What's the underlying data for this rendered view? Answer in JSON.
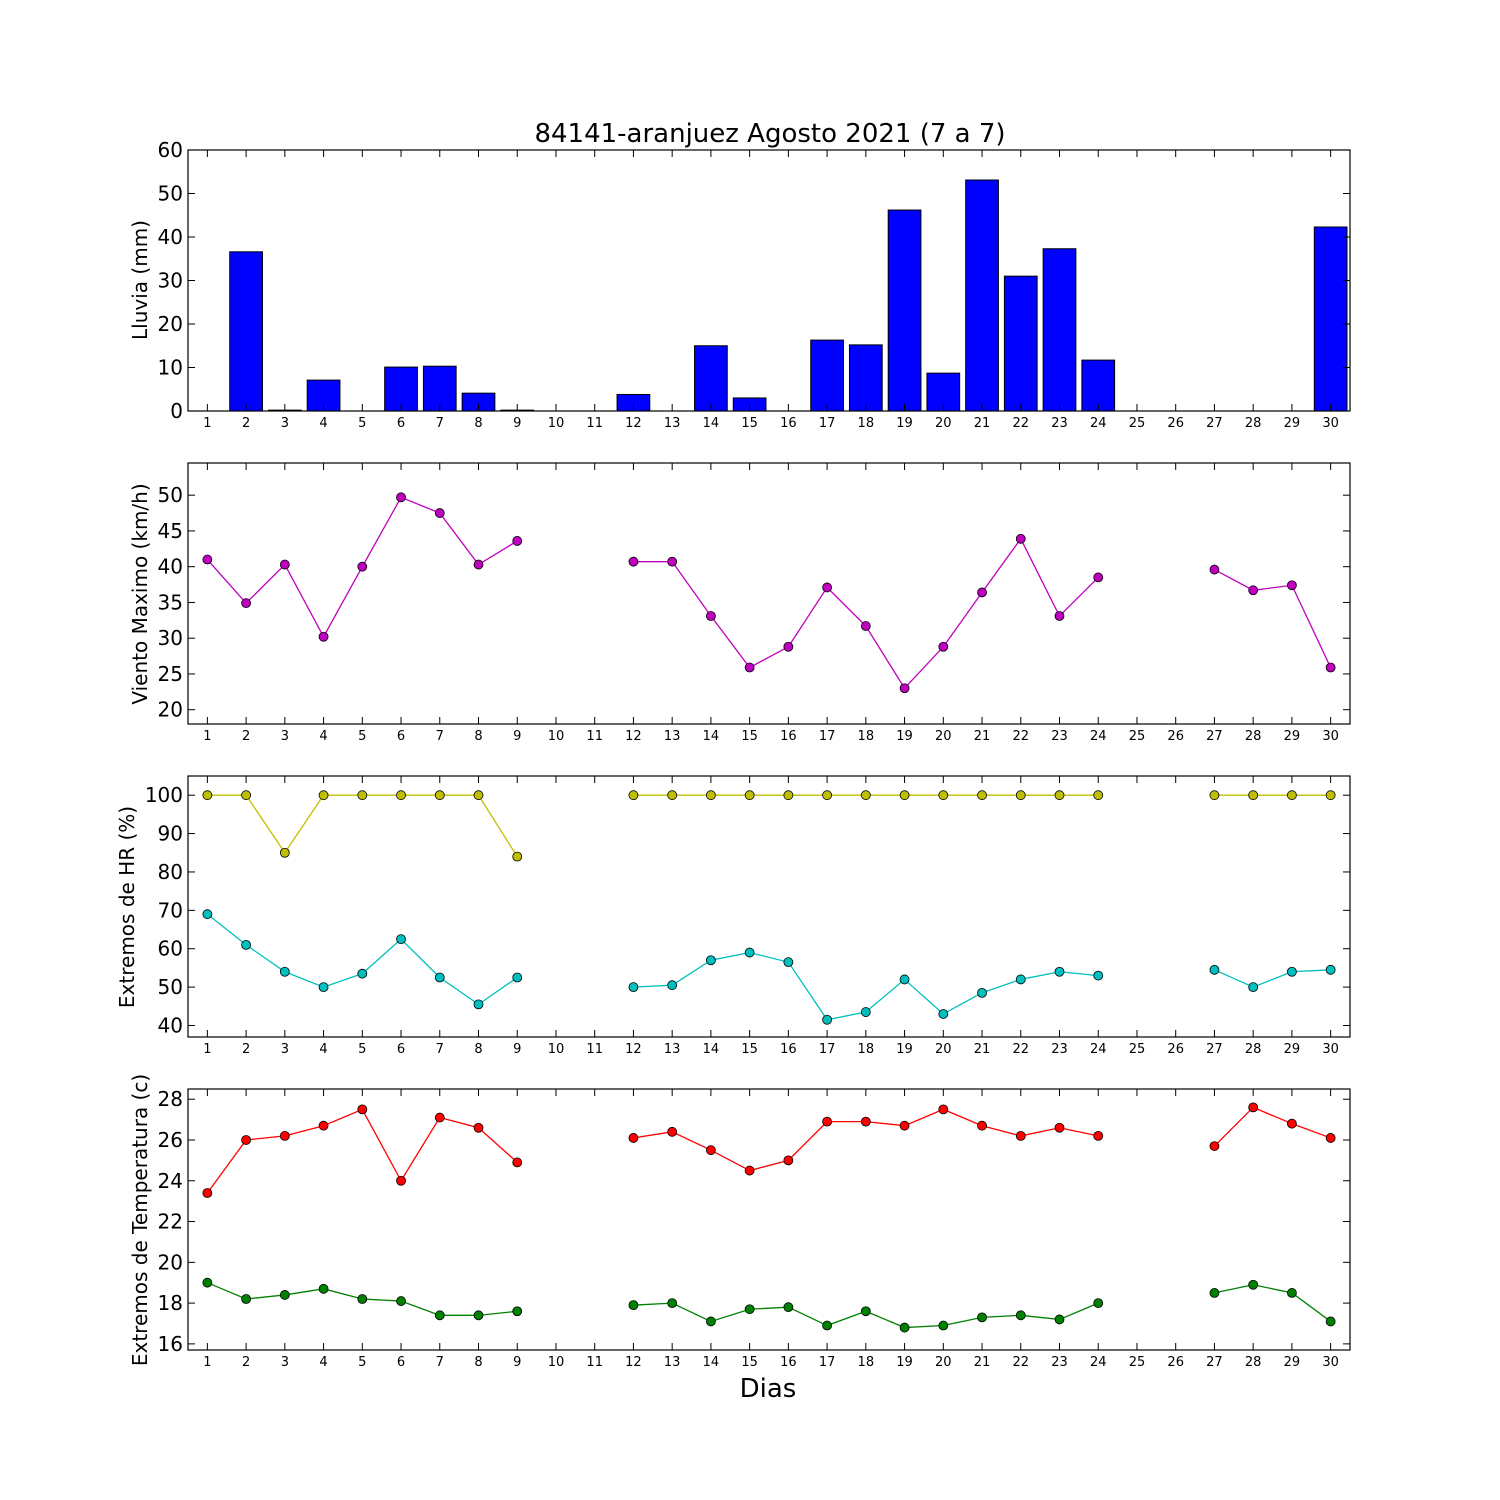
{
  "chart_data": [
    {
      "type": "bar",
      "title": "84141-aranjuez Agosto 2021  (7 a 7)",
      "ylabel": "Lluvia (mm)",
      "ylim": [
        0,
        60
      ],
      "yticks": [
        0,
        10,
        20,
        30,
        40,
        50,
        60
      ],
      "x": [
        1,
        2,
        3,
        4,
        5,
        6,
        7,
        8,
        9,
        10,
        11,
        12,
        13,
        14,
        15,
        16,
        17,
        18,
        19,
        20,
        21,
        22,
        23,
        24,
        25,
        26,
        27,
        28,
        29,
        30
      ],
      "series": [
        {
          "color": "#0000ff",
          "values": [
            0,
            36.6,
            0.2,
            7.1,
            0,
            10.1,
            10.3,
            4.1,
            0.2,
            0,
            0,
            3.8,
            0,
            15.0,
            3.0,
            0,
            16.3,
            15.2,
            46.2,
            8.7,
            53.1,
            31.0,
            37.3,
            11.7,
            0,
            0,
            0,
            0,
            0,
            42.3
          ]
        }
      ]
    },
    {
      "type": "line",
      "ylabel": "Viento Maximo (km/h)",
      "ylim": [
        18,
        54.5
      ],
      "yticks": [
        20,
        25,
        30,
        35,
        40,
        45,
        50
      ],
      "x": [
        1,
        2,
        3,
        4,
        5,
        6,
        7,
        8,
        9,
        10,
        11,
        12,
        13,
        14,
        15,
        16,
        17,
        18,
        19,
        20,
        21,
        22,
        23,
        24,
        25,
        26,
        27,
        28,
        29,
        30
      ],
      "series": [
        {
          "color": "#bf00bf",
          "values": [
            41.0,
            34.9,
            40.3,
            30.2,
            40.0,
            49.7,
            47.5,
            40.3,
            43.6,
            null,
            null,
            40.7,
            40.7,
            33.1,
            25.9,
            28.8,
            37.1,
            31.7,
            23.0,
            28.8,
            36.4,
            43.9,
            33.1,
            38.5,
            null,
            null,
            39.6,
            36.7,
            37.4,
            25.9
          ]
        }
      ]
    },
    {
      "type": "line",
      "ylabel": "Extremos de HR (%)",
      "ylim": [
        37,
        105
      ],
      "yticks": [
        40,
        50,
        60,
        70,
        80,
        90,
        100
      ],
      "x": [
        1,
        2,
        3,
        4,
        5,
        6,
        7,
        8,
        9,
        10,
        11,
        12,
        13,
        14,
        15,
        16,
        17,
        18,
        19,
        20,
        21,
        22,
        23,
        24,
        25,
        26,
        27,
        28,
        29,
        30
      ],
      "series": [
        {
          "color": "#bfbf00",
          "values": [
            100,
            100,
            85,
            100,
            100,
            100,
            100,
            100,
            84,
            null,
            null,
            100,
            100,
            100,
            100,
            100,
            100,
            100,
            100,
            100,
            100,
            100,
            100,
            100,
            null,
            null,
            100,
            100,
            100,
            100
          ]
        },
        {
          "color": "#00bfbf",
          "values": [
            69,
            61,
            54,
            50,
            53.5,
            62.5,
            52.5,
            45.5,
            52.5,
            null,
            null,
            50,
            50.5,
            57,
            59,
            56.5,
            41.5,
            43.5,
            52,
            43,
            48.5,
            52,
            54,
            53,
            null,
            null,
            54.5,
            50,
            54,
            54.5
          ]
        }
      ]
    },
    {
      "type": "line",
      "ylabel": "Extremos de Temperatura (c)",
      "xlabel": "Dias",
      "ylim": [
        15.7,
        28.5
      ],
      "yticks": [
        16,
        18,
        20,
        22,
        24,
        26,
        28
      ],
      "x": [
        1,
        2,
        3,
        4,
        5,
        6,
        7,
        8,
        9,
        10,
        11,
        12,
        13,
        14,
        15,
        16,
        17,
        18,
        19,
        20,
        21,
        22,
        23,
        24,
        25,
        26,
        27,
        28,
        29,
        30
      ],
      "series": [
        {
          "color": "#ff0000",
          "values": [
            23.4,
            26.0,
            26.2,
            26.7,
            27.5,
            24.0,
            27.1,
            26.6,
            24.9,
            null,
            null,
            26.1,
            26.4,
            25.5,
            24.5,
            25.0,
            26.9,
            26.9,
            26.7,
            27.5,
            26.7,
            26.2,
            26.6,
            26.2,
            null,
            null,
            25.7,
            27.6,
            26.8,
            26.1
          ]
        },
        {
          "color": "#008000",
          "values": [
            19.0,
            18.2,
            18.4,
            18.7,
            18.2,
            18.1,
            17.4,
            17.4,
            17.6,
            null,
            null,
            17.9,
            18.0,
            17.1,
            17.7,
            17.8,
            16.9,
            17.6,
            16.8,
            16.9,
            17.3,
            17.4,
            17.2,
            18.0,
            null,
            null,
            18.5,
            18.9,
            18.5,
            17.1
          ]
        }
      ]
    }
  ]
}
